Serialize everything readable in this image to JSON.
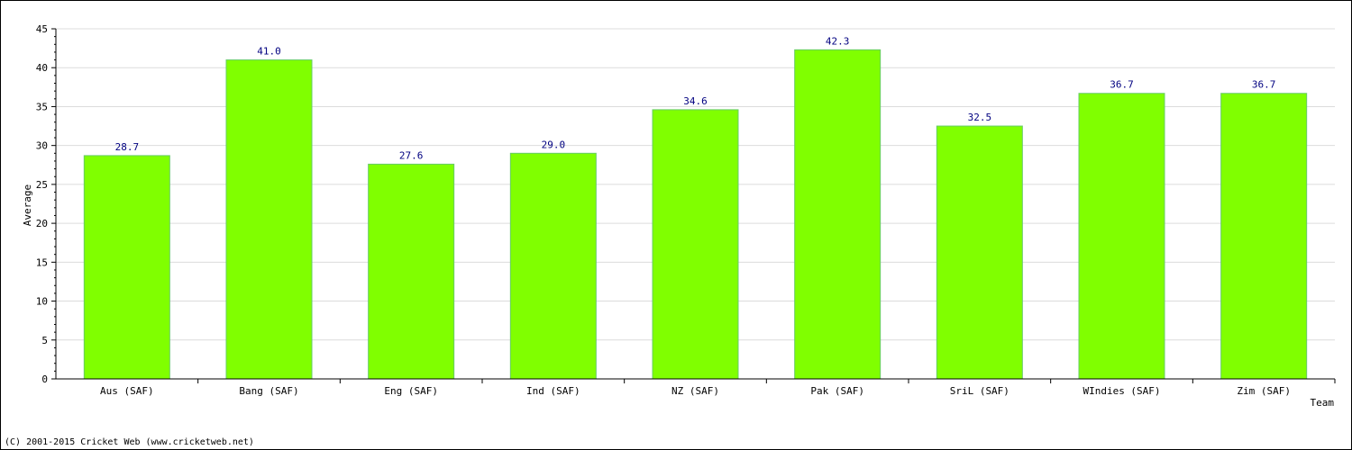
{
  "chart_data": {
    "type": "bar",
    "categories": [
      "Aus (SAF)",
      "Bang (SAF)",
      "Eng (SAF)",
      "Ind (SAF)",
      "NZ (SAF)",
      "Pak (SAF)",
      "SriL (SAF)",
      "WIndies (SAF)",
      "Zim (SAF)"
    ],
    "values": [
      28.7,
      41.0,
      27.6,
      29.0,
      34.6,
      42.3,
      32.5,
      36.7,
      36.7
    ],
    "data_labels": [
      "28.7",
      "41.0",
      "27.6",
      "29.0",
      "34.6",
      "42.3",
      "32.5",
      "36.7",
      "36.7"
    ],
    "title": "",
    "xlabel": "Team",
    "ylabel": "Average",
    "ylim": [
      0,
      45
    ],
    "yticks": [
      0,
      5,
      10,
      15,
      20,
      25,
      30,
      35,
      40,
      45
    ],
    "grid": true,
    "bar_color": "#80ff00",
    "bar_edge_color": "#66cc66",
    "data_label_color": "#000080"
  },
  "footer": {
    "copyright": "(C) 2001-2015 Cricket Web (www.cricketweb.net)"
  }
}
